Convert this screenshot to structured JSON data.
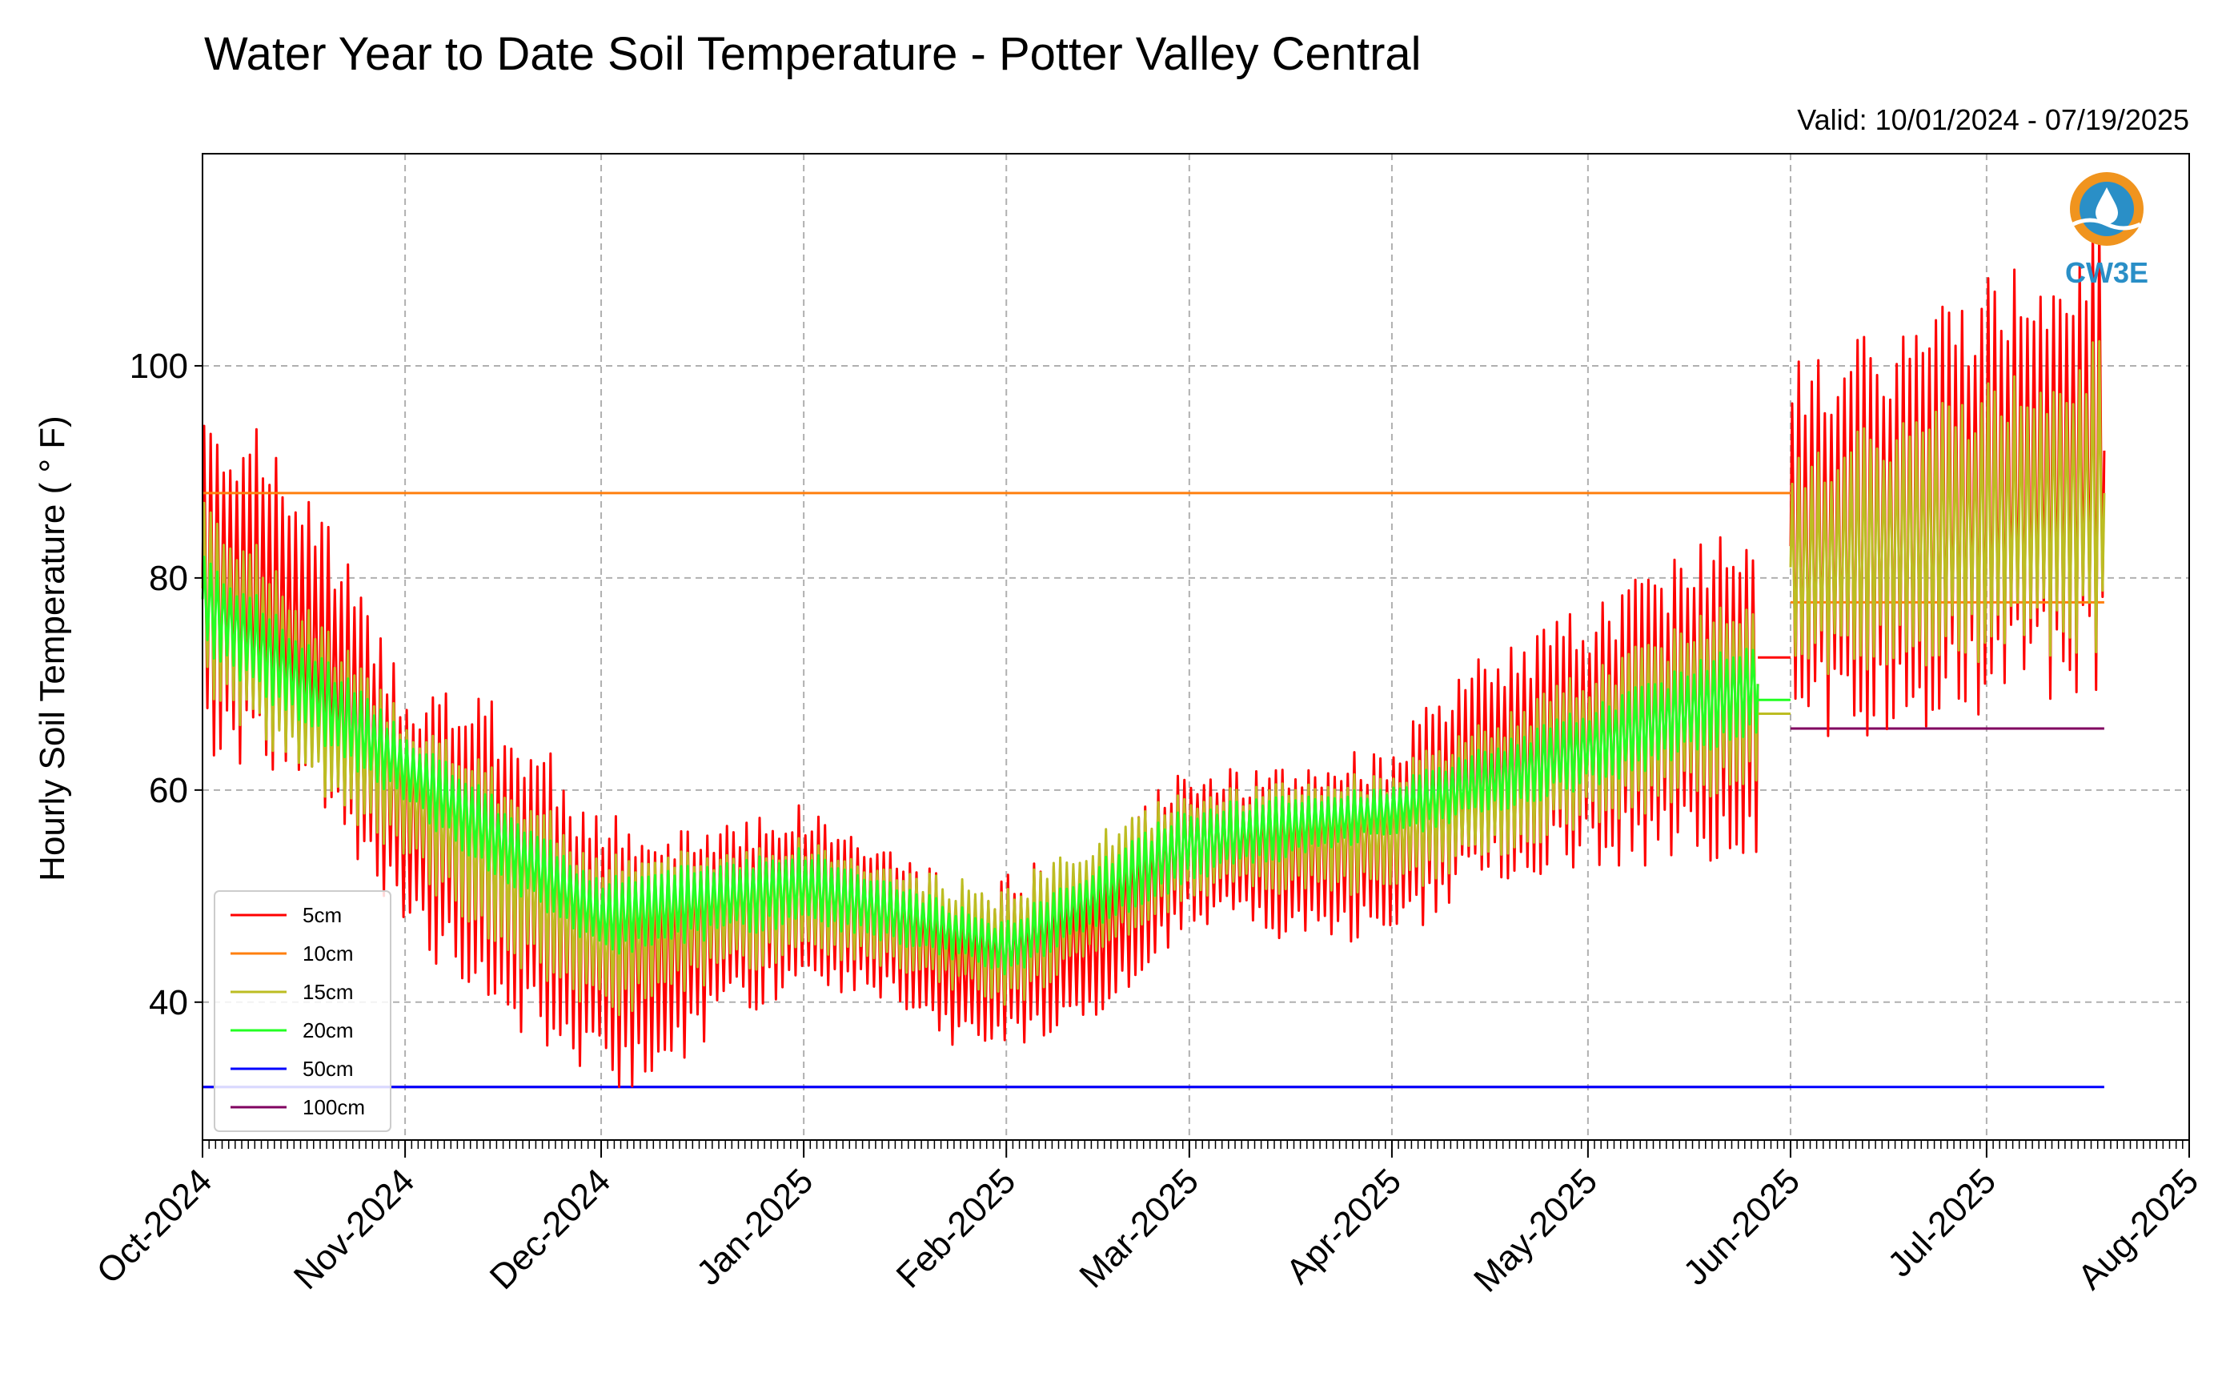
{
  "chart_data": {
    "type": "line",
    "title": "Water Year to Date Soil Temperature - Potter Valley Central",
    "subtitle": "Valid: 10/01/2024 - 07/19/2025",
    "ylabel": "Hourly Soil Temperature ( ° F)",
    "xlabel": "",
    "x_range": [
      "2024-10-01",
      "2025-08-01"
    ],
    "ylim": [
      27,
      120
    ],
    "yticks": [
      40,
      60,
      80,
      100
    ],
    "xticks": [
      "Oct-2024",
      "Nov-2024",
      "Dec-2024",
      "Jan-2025",
      "Feb-2025",
      "Mar-2025",
      "Apr-2025",
      "May-2025",
      "Jun-2025",
      "Jul-2025",
      "Aug-2025"
    ],
    "grid": true,
    "legend_placement": "lower-left",
    "logo": "CW3E",
    "series": [
      {
        "name": "5cm",
        "color": "#ff0000",
        "daily_amplitude": [
          14,
          10,
          12,
          8,
          6,
          7,
          6,
          8,
          10,
          14,
          16,
          18
        ],
        "daily_mean": [
          {
            "date": "2024-10-01",
            "value": 80
          },
          {
            "date": "2024-10-10",
            "value": 78
          },
          {
            "date": "2024-10-20",
            "value": 72
          },
          {
            "date": "2024-11-01",
            "value": 58
          },
          {
            "date": "2024-11-15",
            "value": 54
          },
          {
            "date": "2024-11-25",
            "value": 48
          },
          {
            "date": "2024-12-01",
            "value": 45
          },
          {
            "date": "2024-12-10",
            "value": 44
          },
          {
            "date": "2024-12-20",
            "value": 48
          },
          {
            "date": "2025-01-01",
            "value": 50
          },
          {
            "date": "2025-01-15",
            "value": 47
          },
          {
            "date": "2025-01-25",
            "value": 43
          },
          {
            "date": "2025-02-01",
            "value": 44
          },
          {
            "date": "2025-02-15",
            "value": 46
          },
          {
            "date": "2025-03-01",
            "value": 55
          },
          {
            "date": "2025-03-15",
            "value": 54
          },
          {
            "date": "2025-04-01",
            "value": 55
          },
          {
            "date": "2025-04-15",
            "value": 62
          },
          {
            "date": "2025-05-01",
            "value": 65
          },
          {
            "date": "2025-05-15",
            "value": 68
          },
          {
            "date": "2025-05-27",
            "value": 70
          },
          {
            "date": "2025-06-01",
            "value": 83
          },
          {
            "date": "2025-06-15",
            "value": 84
          },
          {
            "date": "2025-07-01",
            "value": 88
          },
          {
            "date": "2025-07-19",
            "value": 92
          }
        ],
        "flat_segments": [
          {
            "from": "2025-05-27",
            "to": "2025-06-01",
            "value": 72.5
          }
        ]
      },
      {
        "name": "10cm",
        "color": "#ff7f0e",
        "flat_segments": [
          {
            "from": "2024-10-01",
            "to": "2025-06-01",
            "value": 88
          },
          {
            "from": "2025-06-01",
            "to": "2025-07-19",
            "value": 77.7
          }
        ]
      },
      {
        "name": "15cm",
        "color": "#bcbd22",
        "daily_amplitude": [
          8,
          6,
          7,
          5,
          4,
          5,
          4,
          5,
          6,
          8,
          10,
          12
        ],
        "daily_mean": [
          {
            "date": "2024-10-01",
            "value": 79
          },
          {
            "date": "2024-11-01",
            "value": 60
          },
          {
            "date": "2024-12-01",
            "value": 46
          },
          {
            "date": "2025-01-01",
            "value": 50
          },
          {
            "date": "2025-02-01",
            "value": 45
          },
          {
            "date": "2025-03-01",
            "value": 55
          },
          {
            "date": "2025-04-01",
            "value": 56
          },
          {
            "date": "2025-05-01",
            "value": 64
          },
          {
            "date": "2025-05-27",
            "value": 70
          },
          {
            "date": "2025-06-01",
            "value": 81
          },
          {
            "date": "2025-07-19",
            "value": 88
          }
        ],
        "flat_segments": [
          {
            "from": "2025-05-27",
            "to": "2025-06-01",
            "value": 67.2
          }
        ]
      },
      {
        "name": "20cm",
        "color": "#22ff22",
        "daily_amplitude": [
          4,
          3,
          3,
          3,
          2,
          3,
          2,
          3,
          4
        ],
        "daily_mean": [
          {
            "date": "2024-10-01",
            "value": 78
          },
          {
            "date": "2024-11-01",
            "value": 62
          },
          {
            "date": "2024-12-01",
            "value": 48
          },
          {
            "date": "2025-01-01",
            "value": 51
          },
          {
            "date": "2025-02-01",
            "value": 45
          },
          {
            "date": "2025-03-01",
            "value": 55
          },
          {
            "date": "2025-04-01",
            "value": 58
          },
          {
            "date": "2025-05-01",
            "value": 64
          },
          {
            "date": "2025-05-27",
            "value": 70
          }
        ],
        "flat_segments": [
          {
            "from": "2025-05-27",
            "to": "2025-06-01",
            "value": 68.5
          }
        ]
      },
      {
        "name": "50cm",
        "color": "#0000ff",
        "flat_segments": [
          {
            "from": "2024-10-01",
            "to": "2025-07-19",
            "value": 32
          }
        ]
      },
      {
        "name": "100cm",
        "color": "#800060",
        "flat_segments": [
          {
            "from": "2024-10-01",
            "to": "2025-06-01",
            "value": 32
          },
          {
            "from": "2025-06-01",
            "to": "2025-07-19",
            "value": 65.8
          }
        ]
      }
    ]
  }
}
